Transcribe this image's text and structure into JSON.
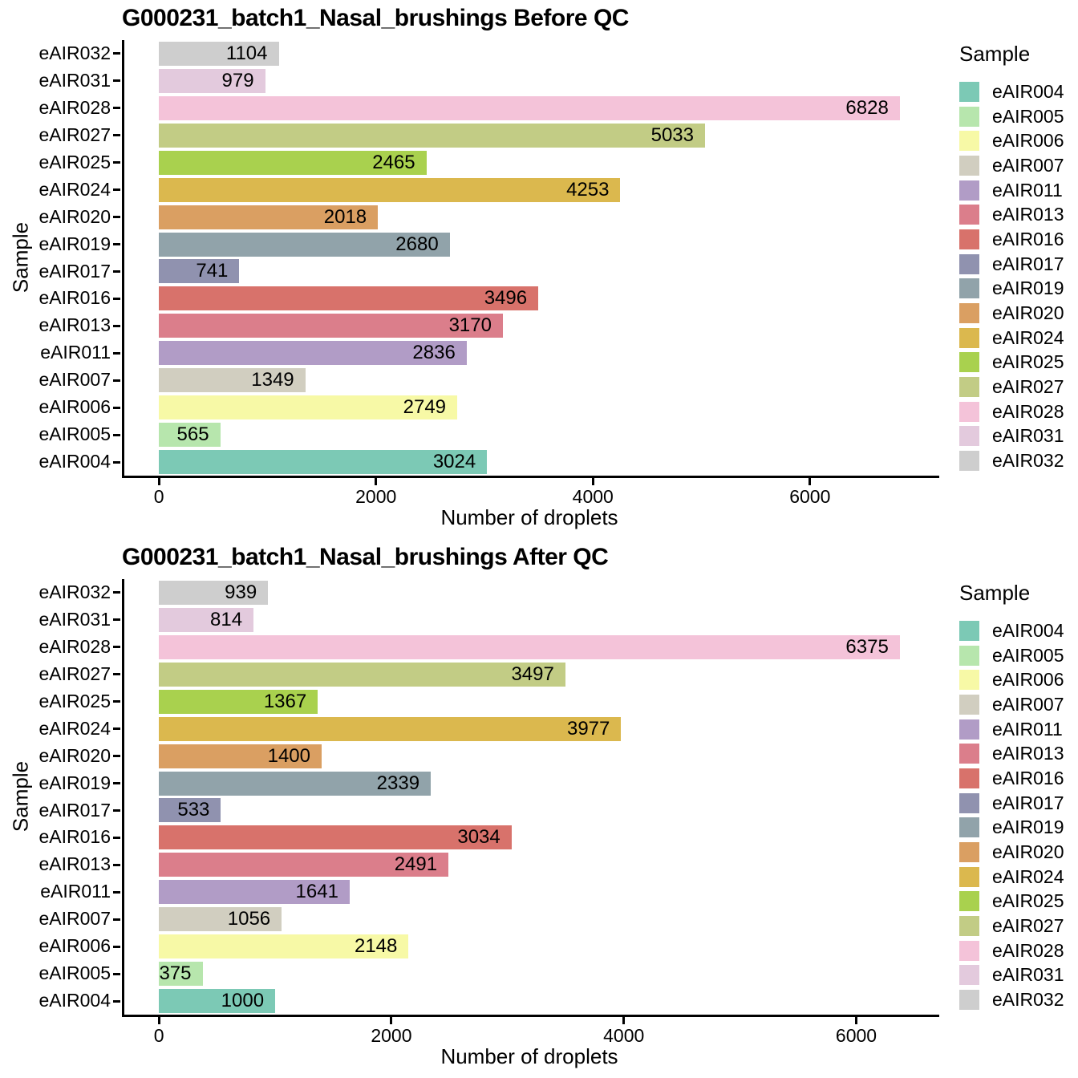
{
  "palette": {
    "eAIR004": "#7cc9b5",
    "eAIR005": "#b7e6ad",
    "eAIR006": "#f7f9a6",
    "eAIR007": "#d1cec0",
    "eAIR011": "#b19cc6",
    "eAIR013": "#db7e8b",
    "eAIR016": "#d8726b",
    "eAIR017": "#9092af",
    "eAIR019": "#91a3aa",
    "eAIR020": "#da9f62",
    "eAIR024": "#dbb84e",
    "eAIR025": "#a9d14e",
    "eAIR027": "#c2cc85",
    "eAIR028": "#f4c3d9",
    "eAIR031": "#e3cadd",
    "eAIR032": "#cecece"
  },
  "axis_color": "#000000",
  "background_color": "#ffffff",
  "chart_data": [
    {
      "type": "bar",
      "orientation": "horizontal",
      "title": "G000231_batch1_Nasal_brushings Before QC",
      "xlabel": "Number of droplets",
      "ylabel": "Sample",
      "legend_title": "Sample",
      "legend_position": "right",
      "grid": false,
      "xlim": [
        0,
        6828
      ],
      "xticks": [
        0,
        2000,
        4000,
        6000
      ],
      "xtick_labels": [
        "0",
        "2000",
        "4000",
        "6000"
      ],
      "categories_top_to_bottom": [
        "eAIR032",
        "eAIR031",
        "eAIR028",
        "eAIR027",
        "eAIR025",
        "eAIR024",
        "eAIR020",
        "eAIR019",
        "eAIR017",
        "eAIR016",
        "eAIR013",
        "eAIR011",
        "eAIR007",
        "eAIR006",
        "eAIR005",
        "eAIR004"
      ],
      "values": [
        1104,
        979,
        6828,
        5033,
        2465,
        4253,
        2018,
        2680,
        741,
        3496,
        3170,
        2836,
        1349,
        2749,
        565,
        3024
      ],
      "bar_labels": [
        "1104",
        "979",
        "6828",
        "5033",
        "2465",
        "4253",
        "2018",
        "2680",
        "741",
        "3496",
        "3170",
        "2836",
        "1349",
        "2749",
        "565",
        "3024"
      ]
    },
    {
      "type": "bar",
      "orientation": "horizontal",
      "title": "G000231_batch1_Nasal_brushings After QC",
      "xlabel": "Number of droplets",
      "ylabel": "Sample",
      "legend_title": "Sample",
      "legend_position": "right",
      "grid": false,
      "xlim": [
        0,
        6375
      ],
      "xticks": [
        0,
        2000,
        4000,
        6000
      ],
      "xtick_labels": [
        "0",
        "2000",
        "4000",
        "6000"
      ],
      "categories_top_to_bottom": [
        "eAIR032",
        "eAIR031",
        "eAIR028",
        "eAIR027",
        "eAIR025",
        "eAIR024",
        "eAIR020",
        "eAIR019",
        "eAIR017",
        "eAIR016",
        "eAIR013",
        "eAIR011",
        "eAIR007",
        "eAIR006",
        "eAIR005",
        "eAIR004"
      ],
      "values": [
        939,
        814,
        6375,
        3497,
        1367,
        3977,
        1400,
        2339,
        533,
        3034,
        2491,
        1641,
        1056,
        2148,
        375,
        1000
      ],
      "bar_labels": [
        "939",
        "814",
        "6375",
        "3497",
        "1367",
        "3977",
        "1400",
        "2339",
        "533",
        "3034",
        "2491",
        "1641",
        "1056",
        "2148",
        "375",
        "1000"
      ]
    }
  ],
  "legend_entries_top_to_bottom": [
    "eAIR004",
    "eAIR005",
    "eAIR006",
    "eAIR007",
    "eAIR011",
    "eAIR013",
    "eAIR016",
    "eAIR017",
    "eAIR019",
    "eAIR020",
    "eAIR024",
    "eAIR025",
    "eAIR027",
    "eAIR028",
    "eAIR031",
    "eAIR032"
  ]
}
